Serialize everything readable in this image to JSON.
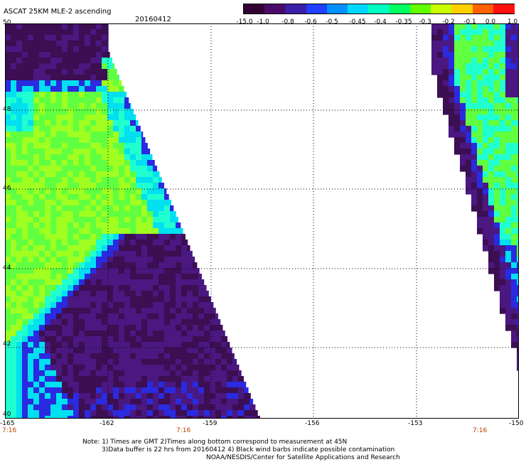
{
  "header": {
    "title": "ASCAT 25KM MLE-2 ascending",
    "date": "20160412"
  },
  "colorbar": {
    "ticks": [
      "-15.0",
      "-1.0",
      "-0.8",
      "-0.6",
      "-0.5",
      "-0.45",
      "-0.4",
      "-0.35",
      "-0.3",
      "-0.2",
      "-0.1",
      "0.0",
      "1.0"
    ],
    "colors": [
      "#330033",
      "#4a0a6a",
      "#3a1fa8",
      "#2040ff",
      "#0090ff",
      "#00d8ff",
      "#00ffc0",
      "#00ff60",
      "#60ff00",
      "#c8ff00",
      "#ffd000",
      "#ff6000",
      "#ff1010"
    ]
  },
  "map": {
    "lon_range": [
      -165,
      -150
    ],
    "lat_range": [
      40,
      50
    ],
    "lat_labels": [
      "50",
      "48",
      "46",
      "44",
      "42",
      "40"
    ],
    "lon_labels": [
      "-165",
      "-162",
      "-159",
      "-156",
      "-153",
      "-150"
    ],
    "time_labels": [
      "7:16",
      "7:16",
      "7:16"
    ],
    "palette": {
      "dark": "#3c0e52",
      "purple": "#4a1880",
      "blue": "#2a2ae0",
      "cyan": "#00e0f0",
      "aqua": "#20ffd0",
      "green": "#60ff40",
      "lime": "#a0ff20"
    }
  },
  "notes": {
    "line1": "Note: 1) Times are GMT 2)Times along bottom correspond to measurement at 45N",
    "line2": "3)Data buffer is 22 hrs from 20160412 4) Black wind barbs indicate possible contamination",
    "line3": "NOAA/NESDIS/Center for Satellite Applications and Research"
  }
}
